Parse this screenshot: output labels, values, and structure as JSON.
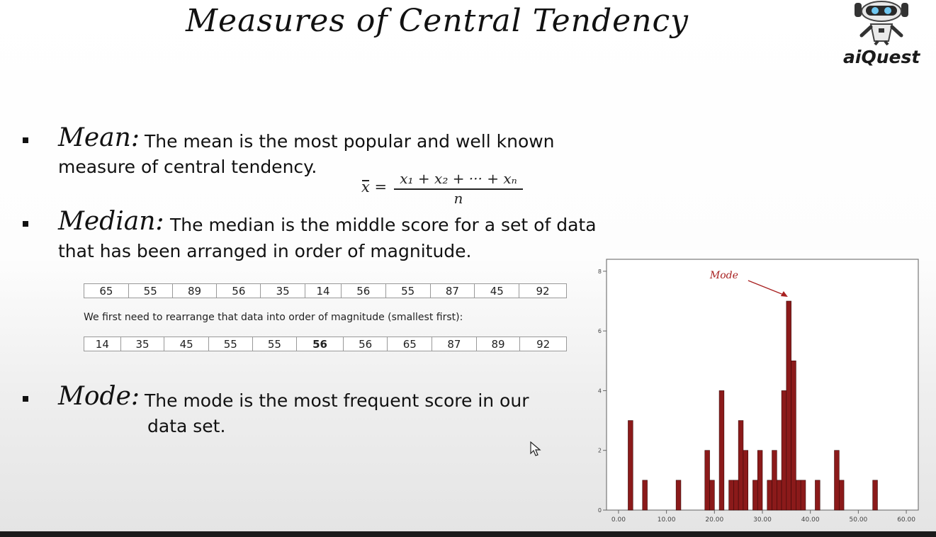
{
  "slide": {
    "title": "Measures of Central Tendency",
    "logo_text": "aiQuest"
  },
  "mean": {
    "term": "Mean:",
    "desc_line1": "The mean is the most popular and well known",
    "desc_line2": "measure of central tendency.",
    "formula_lhs": "x =",
    "formula_numerator": "x₁ + x₂ + ··· + xₙ",
    "formula_denominator": "n"
  },
  "median": {
    "term": "Median:",
    "desc_line1": "The median is the middle score for a set of data",
    "desc_line2": "that has been arranged in order of magnitude.",
    "raw_values": [
      "65",
      "55",
      "89",
      "56",
      "35",
      "14",
      "56",
      "55",
      "87",
      "45",
      "92"
    ],
    "note": "We first need to rearrange that data into order of magnitude (smallest first):",
    "sorted_values": [
      "14",
      "35",
      "45",
      "55",
      "55",
      "56",
      "56",
      "65",
      "87",
      "89",
      "92"
    ],
    "highlight_index": 5
  },
  "mode": {
    "term": "Mode:",
    "desc_line1": "The mode is the most frequent score in our",
    "desc_line2": "data set."
  },
  "colors": {
    "bar_fill": "#8b1a1a",
    "bar_stroke": "#3a0808",
    "annotation": "#a82020"
  },
  "chart_data": {
    "type": "bar",
    "title": "",
    "xlabel": "",
    "ylabel": "",
    "xlim": [
      -2.5,
      62.5
    ],
    "ylim": [
      0,
      8.4
    ],
    "bin_width": 1,
    "x_ticks": [
      "0.00",
      "10.00",
      "20.00",
      "30.00",
      "40.00",
      "50.00",
      "60.00"
    ],
    "y_ticks": [
      "0",
      "2",
      "4",
      "6",
      "8"
    ],
    "bins": [
      {
        "x": 2,
        "count": 3
      },
      {
        "x": 5,
        "count": 1
      },
      {
        "x": 12,
        "count": 1
      },
      {
        "x": 18,
        "count": 2
      },
      {
        "x": 19,
        "count": 1
      },
      {
        "x": 21,
        "count": 4
      },
      {
        "x": 23,
        "count": 1
      },
      {
        "x": 24,
        "count": 1
      },
      {
        "x": 25,
        "count": 3
      },
      {
        "x": 26,
        "count": 2
      },
      {
        "x": 28,
        "count": 1
      },
      {
        "x": 29,
        "count": 2
      },
      {
        "x": 31,
        "count": 1
      },
      {
        "x": 32,
        "count": 2
      },
      {
        "x": 33,
        "count": 1
      },
      {
        "x": 34,
        "count": 4
      },
      {
        "x": 35,
        "count": 7
      },
      {
        "x": 36,
        "count": 5
      },
      {
        "x": 37,
        "count": 1
      },
      {
        "x": 38,
        "count": 1
      },
      {
        "x": 41,
        "count": 1
      },
      {
        "x": 45,
        "count": 2
      },
      {
        "x": 46,
        "count": 1
      },
      {
        "x": 53,
        "count": 1
      }
    ],
    "annotation": {
      "text": "Mode",
      "x": 35
    }
  }
}
